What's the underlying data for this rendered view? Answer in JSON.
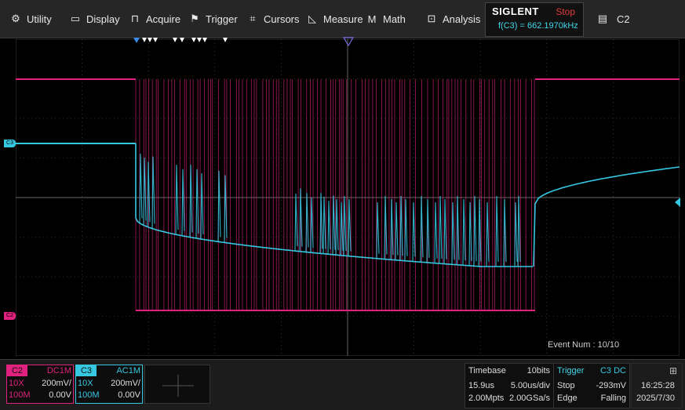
{
  "menu": {
    "utility": "Utility",
    "display": "Display",
    "acquire": "Acquire",
    "trigger": "Trigger",
    "cursors": "Cursors",
    "measure": "Measure",
    "math": "Math",
    "analysis": "Analysis"
  },
  "brand": {
    "logo": "SIGLENT",
    "state": "Stop",
    "frequency": "f(C3) = 662.1970kHz"
  },
  "active_channel": "C2",
  "markers": {
    "c3": "C3",
    "c2": "C2"
  },
  "event_num": "Event Num : 10/10",
  "channels": [
    {
      "name": "C2",
      "coupling": "DC1M",
      "probe": "10X",
      "scale": "200mV/",
      "impedance": "100M",
      "offset": "0.00V",
      "color": "#e0217d"
    },
    {
      "name": "C3",
      "coupling": "AC1M",
      "probe": "10X",
      "scale": "200mV/",
      "impedance": "100M",
      "offset": "0.00V",
      "color": "#35c8e0"
    }
  ],
  "timebase": {
    "label": "Timebase",
    "bits": "10bits",
    "delay": "15.9us",
    "scale": "5.00us/div",
    "memory": "2.00Mpts",
    "rate": "2.00GSa/s"
  },
  "trigger": {
    "label": "Trigger",
    "source": "C3 DC",
    "mode": "Stop",
    "level": "-293mV",
    "type": "Edge",
    "slope": "Falling"
  },
  "clock": {
    "time": "16:25:28",
    "date": "2025/7/30"
  },
  "colors": {
    "c2": "#e0217d",
    "c3": "#35c8e0",
    "trigger_label": "#41d7e8",
    "stop": "#e23b3b"
  }
}
